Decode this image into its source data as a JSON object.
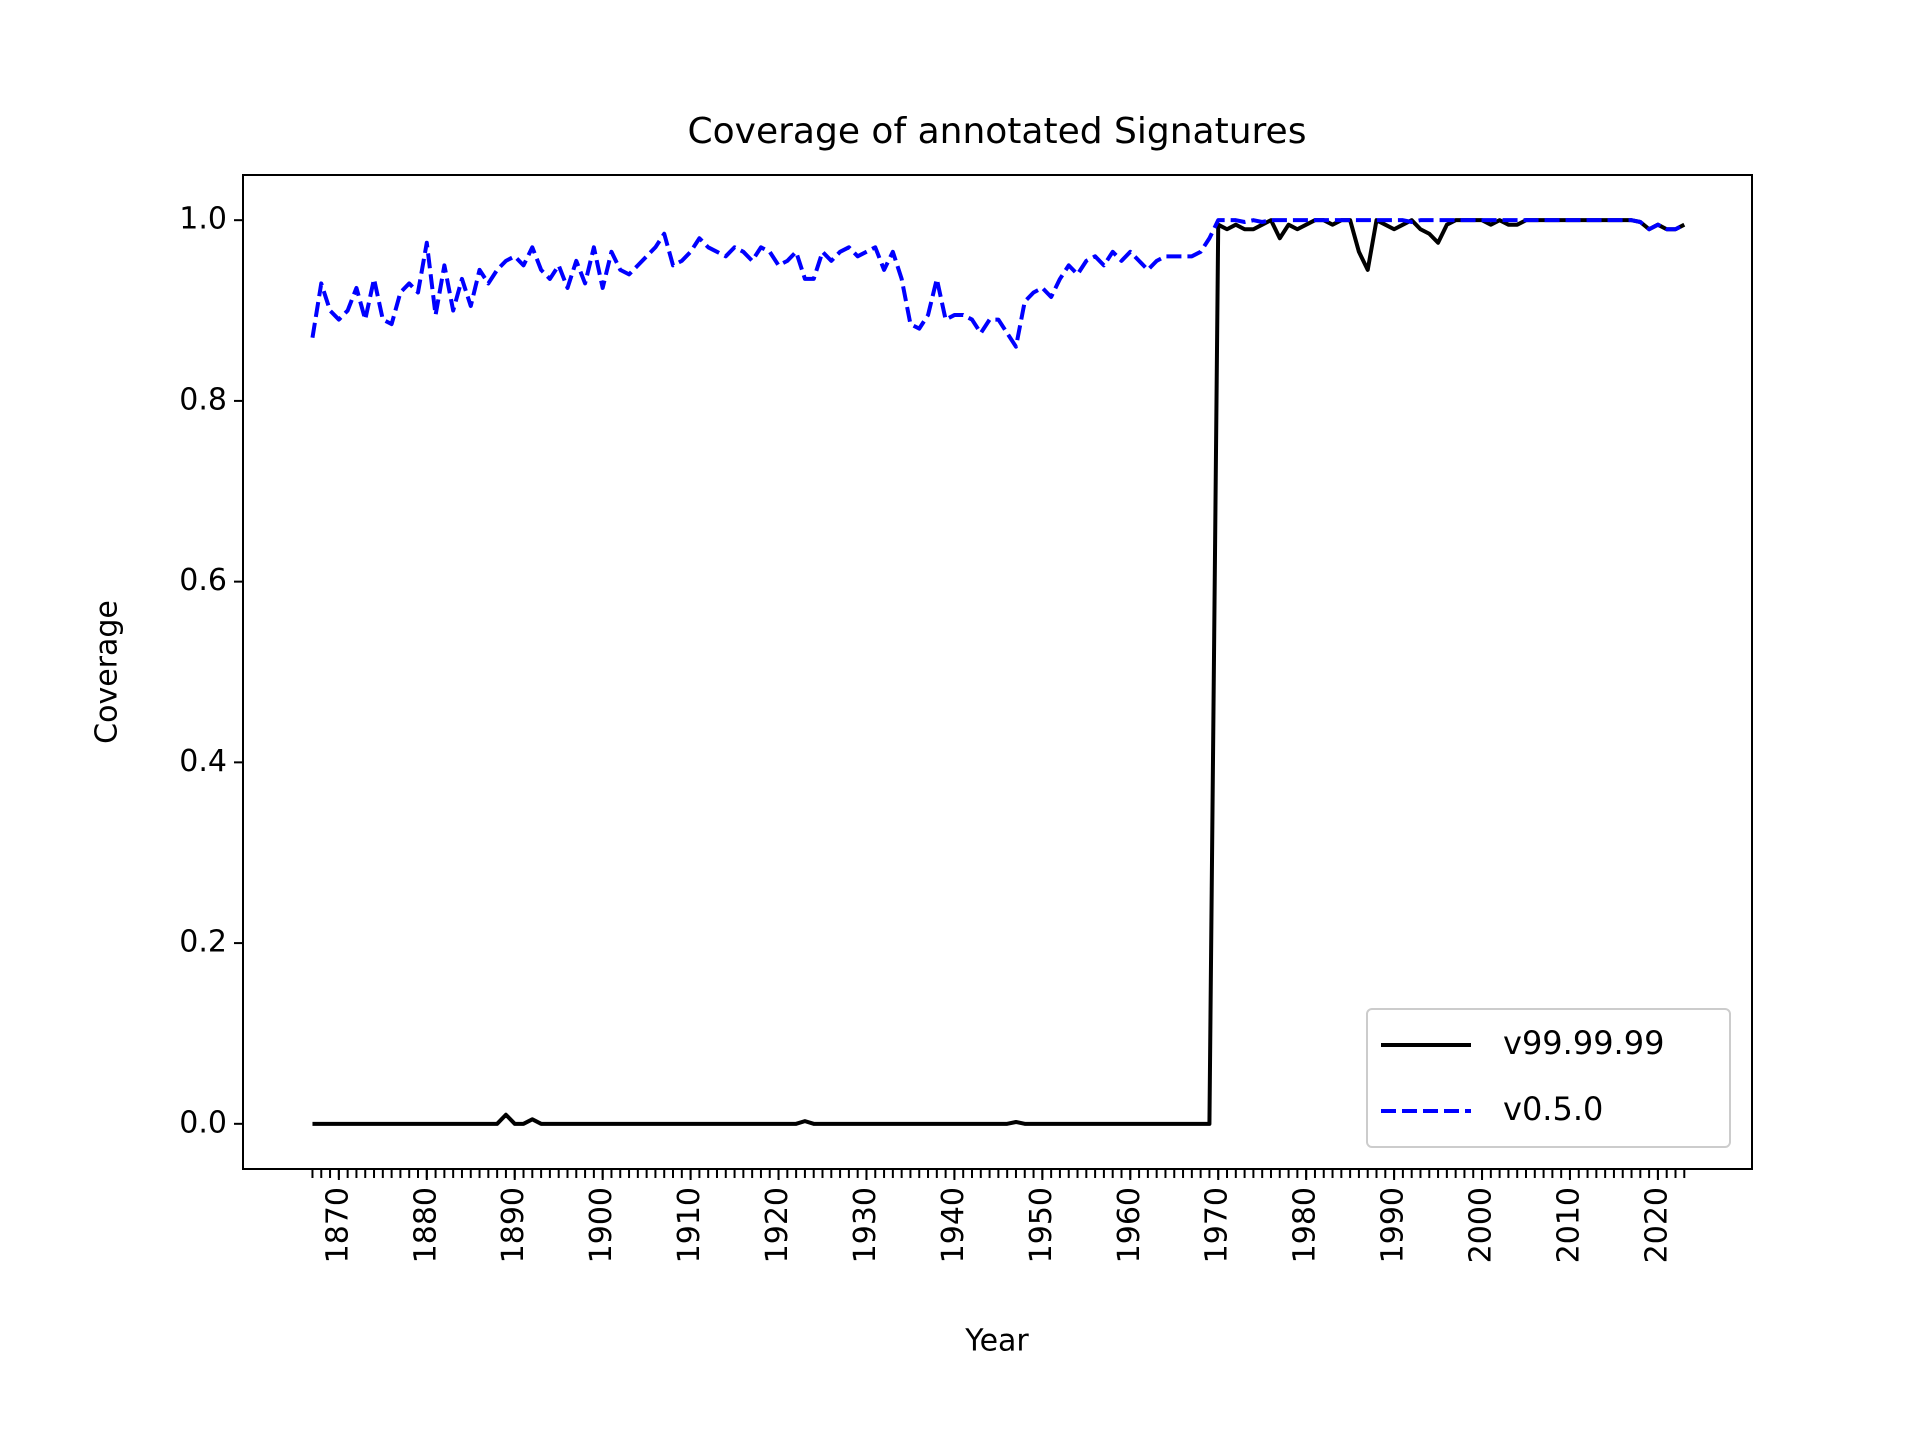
{
  "chart_data": {
    "type": "line",
    "title": "Coverage of annotated Signatures",
    "x_label": "Year",
    "y_label": "Coverage",
    "x": [
      1867,
      1868,
      1869,
      1870,
      1871,
      1872,
      1873,
      1874,
      1875,
      1876,
      1877,
      1878,
      1879,
      1880,
      1881,
      1882,
      1883,
      1884,
      1885,
      1886,
      1887,
      1888,
      1889,
      1890,
      1891,
      1892,
      1893,
      1894,
      1895,
      1896,
      1897,
      1898,
      1899,
      1900,
      1901,
      1902,
      1903,
      1904,
      1905,
      1906,
      1907,
      1908,
      1909,
      1910,
      1911,
      1912,
      1913,
      1914,
      1915,
      1916,
      1917,
      1918,
      1919,
      1920,
      1921,
      1922,
      1923,
      1924,
      1925,
      1926,
      1927,
      1928,
      1929,
      1930,
      1931,
      1932,
      1933,
      1934,
      1935,
      1936,
      1937,
      1938,
      1939,
      1940,
      1941,
      1942,
      1943,
      1944,
      1945,
      1946,
      1947,
      1948,
      1949,
      1950,
      1951,
      1952,
      1953,
      1954,
      1955,
      1956,
      1957,
      1958,
      1959,
      1960,
      1961,
      1962,
      1963,
      1964,
      1965,
      1966,
      1967,
      1968,
      1969,
      1970,
      1971,
      1972,
      1973,
      1974,
      1975,
      1976,
      1977,
      1978,
      1979,
      1980,
      1981,
      1982,
      1983,
      1984,
      1985,
      1986,
      1987,
      1988,
      1989,
      1990,
      1991,
      1992,
      1993,
      1994,
      1995,
      1996,
      1997,
      1998,
      1999,
      2000,
      2001,
      2002,
      2003,
      2004,
      2005,
      2006,
      2007,
      2008,
      2009,
      2010,
      2011,
      2012,
      2013,
      2014,
      2015,
      2016,
      2017,
      2018,
      2019,
      2020,
      2021,
      2022,
      2023
    ],
    "series": [
      {
        "name": "v99.99.99",
        "color": "#000000",
        "linestyle": "solid",
        "values": [
          0,
          0,
          0,
          0,
          0,
          0,
          0,
          0,
          0,
          0,
          0,
          0,
          0,
          0,
          0,
          0,
          0,
          0,
          0,
          0,
          0,
          0,
          0.01,
          0,
          0,
          0.005,
          0,
          0,
          0,
          0,
          0,
          0,
          0,
          0,
          0,
          0,
          0,
          0,
          0,
          0,
          0,
          0,
          0,
          0,
          0,
          0,
          0,
          0,
          0,
          0,
          0,
          0,
          0,
          0,
          0,
          0,
          0.003,
          0,
          0,
          0,
          0,
          0,
          0,
          0,
          0,
          0,
          0,
          0,
          0,
          0,
          0,
          0,
          0,
          0,
          0,
          0,
          0,
          0,
          0,
          0,
          0.002,
          0,
          0,
          0,
          0,
          0,
          0,
          0,
          0,
          0,
          0,
          0,
          0,
          0,
          0,
          0,
          0,
          0,
          0,
          0,
          0,
          0,
          0,
          0.995,
          0.99,
          0.995,
          0.99,
          0.99,
          0.995,
          1.0,
          0.98,
          0.995,
          0.99,
          0.995,
          1.0,
          1.0,
          0.995,
          1.0,
          1.0,
          0.965,
          0.945,
          1.0,
          0.995,
          0.99,
          0.995,
          1.0,
          0.99,
          0.985,
          0.975,
          0.995,
          1.0,
          1.0,
          1.0,
          1.0,
          0.995,
          1.0,
          0.995,
          0.995,
          1.0,
          1.0,
          1.0,
          1.0,
          1.0,
          1.0,
          1.0,
          1.0,
          1.0,
          1.0,
          1.0,
          1.0,
          1.0,
          0.998,
          0.99,
          0.995,
          0.99,
          0.99,
          0.995
        ]
      },
      {
        "name": "v0.5.0",
        "color": "#0000ff",
        "linestyle": "dashed",
        "values": [
          0.87,
          0.93,
          0.9,
          0.89,
          0.9,
          0.925,
          0.89,
          0.935,
          0.89,
          0.885,
          0.92,
          0.93,
          0.92,
          0.975,
          0.895,
          0.95,
          0.9,
          0.935,
          0.905,
          0.945,
          0.93,
          0.945,
          0.955,
          0.96,
          0.95,
          0.97,
          0.945,
          0.935,
          0.95,
          0.925,
          0.955,
          0.93,
          0.97,
          0.925,
          0.965,
          0.945,
          0.94,
          0.95,
          0.96,
          0.97,
          0.985,
          0.95,
          0.955,
          0.965,
          0.98,
          0.97,
          0.965,
          0.96,
          0.97,
          0.965,
          0.955,
          0.97,
          0.965,
          0.95,
          0.955,
          0.965,
          0.935,
          0.935,
          0.965,
          0.955,
          0.965,
          0.97,
          0.96,
          0.965,
          0.97,
          0.945,
          0.965,
          0.935,
          0.885,
          0.88,
          0.895,
          0.935,
          0.89,
          0.895,
          0.895,
          0.89,
          0.875,
          0.89,
          0.89,
          0.875,
          0.86,
          0.91,
          0.92,
          0.925,
          0.915,
          0.935,
          0.95,
          0.94,
          0.955,
          0.96,
          0.95,
          0.965,
          0.955,
          0.965,
          0.955,
          0.945,
          0.955,
          0.96,
          0.96,
          0.96,
          0.96,
          0.965,
          0.98,
          1.0,
          1.0,
          1.0,
          0.998,
          1.0,
          0.998,
          1.0,
          1.0,
          1.0,
          1.0,
          1.0,
          1.0,
          1.0,
          1.0,
          1.0,
          1.0,
          1.0,
          1.0,
          1.0,
          1.0,
          1.0,
          1.0,
          0.998,
          1.0,
          1.0,
          1.0,
          1.0,
          1.0,
          1.0,
          1.0,
          1.0,
          1.0,
          1.0,
          1.0,
          1.0,
          1.0,
          1.0,
          1.0,
          1.0,
          1.0,
          1.0,
          1.0,
          1.0,
          1.0,
          1.0,
          1.0,
          1.0,
          1.0,
          0.998,
          0.99,
          0.995,
          0.99,
          0.99,
          0.995
        ]
      }
    ],
    "xlim": [
      1859.1,
      2030.7
    ],
    "xticks": [
      1870,
      1880,
      1890,
      1900,
      1910,
      1920,
      1930,
      1940,
      1950,
      1960,
      1970,
      1980,
      1990,
      2000,
      2010,
      2020
    ],
    "ylim": [
      -0.05,
      1.05
    ],
    "yticks": [
      {
        "value": 0,
        "label": "0.0"
      },
      0.2,
      0.4,
      0.6,
      0.8,
      {
        "value": 1,
        "label": "1.0"
      }
    ],
    "legend": "lower right"
  }
}
